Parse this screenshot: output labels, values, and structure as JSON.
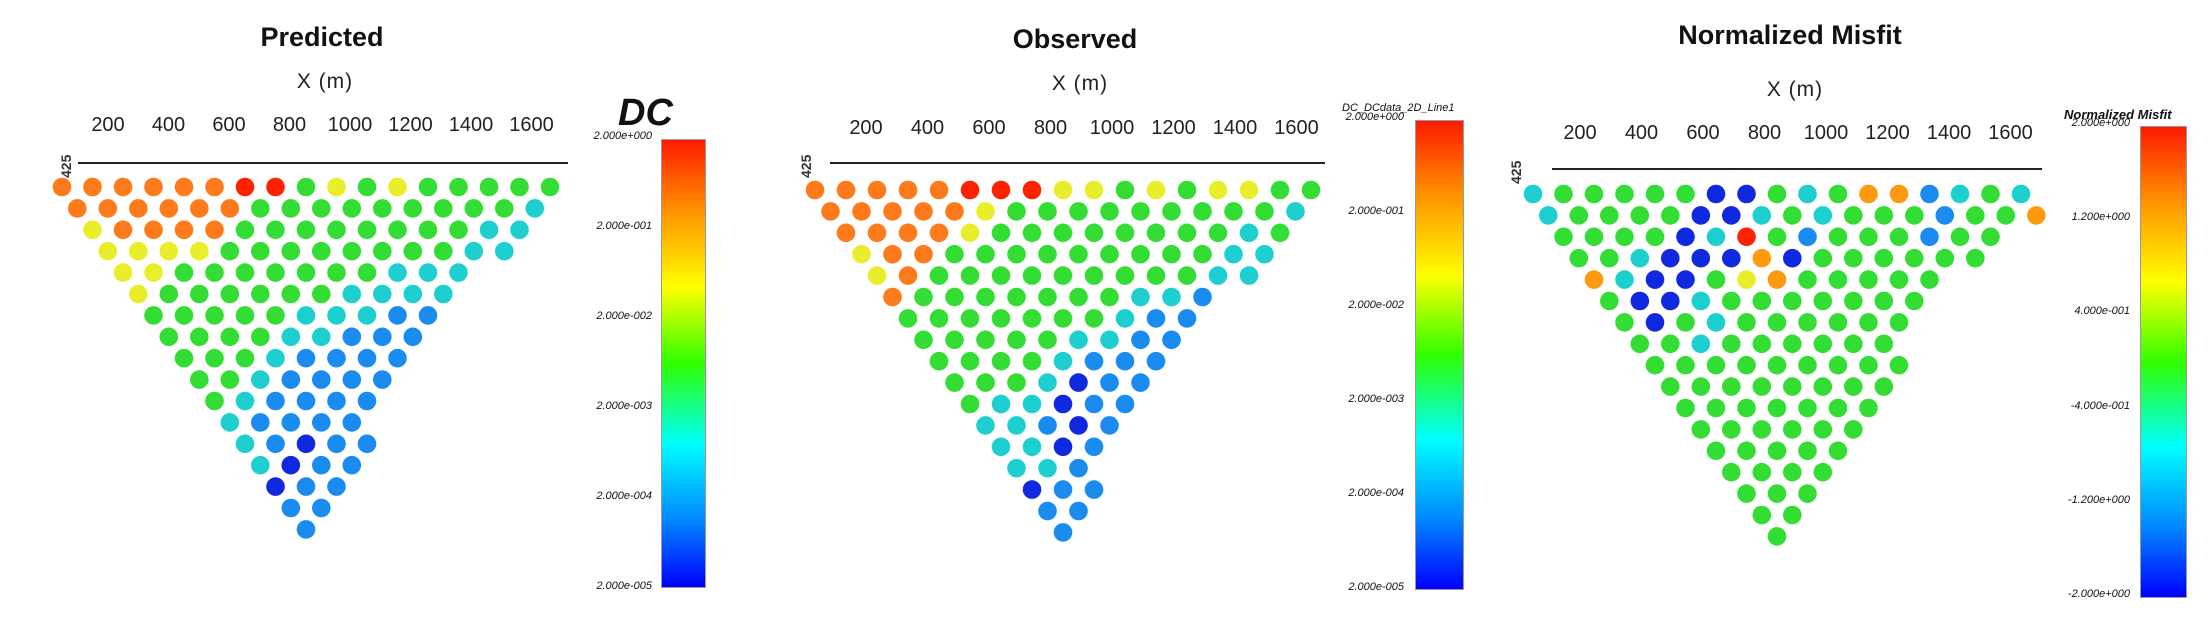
{
  "panels": [
    {
      "id": "predicted",
      "title": "Predicted",
      "xlabel": "X (m)",
      "xticks": [
        "200",
        "400",
        "600",
        "800",
        "1000",
        "1200",
        "1400",
        "1600"
      ],
      "zlabel": "425",
      "colorbar": {
        "title": "DC",
        "ticks": [
          "2.000e+000",
          "2.000e-001",
          "2.000e-002",
          "2.000e-003",
          "2.000e-004",
          "2.000e-005"
        ]
      }
    },
    {
      "id": "observed",
      "title": "Observed",
      "xlabel": "X (m)",
      "xticks": [
        "200",
        "400",
        "600",
        "800",
        "1000",
        "1200",
        "1400",
        "1600"
      ],
      "zlabel": "425",
      "colorbar": {
        "title": "DC_DCdata_2D_Line1",
        "ticks": [
          "2.000e+000",
          "2.000e-001",
          "2.000e-002",
          "2.000e-003",
          "2.000e-004",
          "2.000e-005"
        ]
      }
    },
    {
      "id": "misfit",
      "title": "Normalized Misfit",
      "xlabel": "X (m)",
      "xticks": [
        "200",
        "400",
        "600",
        "800",
        "1000",
        "1200",
        "1400",
        "1600"
      ],
      "zlabel": "425",
      "colorbar": {
        "title": "Normalized Misfit",
        "ticks": [
          "2.000e+000",
          "1.200e+000",
          "4.000e-001",
          "-4.000e-001",
          "-1.200e+000",
          "-2.000e+000"
        ]
      }
    }
  ],
  "chart_data": [
    {
      "type": "scatter",
      "title": "Predicted",
      "xlabel": "X (m)",
      "xlim": [
        60,
        1700
      ],
      "xticks": [
        200,
        400,
        600,
        800,
        1000,
        1200,
        1400,
        1600
      ],
      "colorscale": "log",
      "clim": [
        2e-05,
        2.0
      ],
      "color_ticks": [
        "2.000e+000",
        "2.000e-001",
        "2.000e-002",
        "2.000e-003",
        "2.000e-004",
        "2.000e-005"
      ],
      "rows": [
        "OOOOOORRgygyggggg",
        "OOOOOOgggggggggc",
        "yOOOOggggggggcc",
        "yyyyggggggggcc",
        "yygggggggccc",
        "yggggggcccc",
        "gggggcccbb",
        "ggggccbbb",
        "gggcbbbb",
        "ggcbbbb",
        "gcbbbb",
        "cbbbb",
        "cbdbb",
        "cdbb",
        "dbb",
        "bb",
        "b"
      ],
      "color_codes": {
        "R": "#ff2200",
        "O": "#ff7a1a",
        "y": "#e8ee2a",
        "g": "#33dd33",
        "c": "#1ecfcf",
        "b": "#1a8cf0",
        "d": "#1028e0"
      }
    },
    {
      "type": "scatter",
      "title": "Observed",
      "xlabel": "X (m)",
      "xlim": [
        60,
        1700
      ],
      "xticks": [
        200,
        400,
        600,
        800,
        1000,
        1200,
        1400,
        1600
      ],
      "colorscale": "log",
      "clim": [
        2e-05,
        2.0
      ],
      "color_ticks": [
        "2.000e+000",
        "2.000e-001",
        "2.000e-002",
        "2.000e-003",
        "2.000e-004",
        "2.000e-005"
      ],
      "rows": [
        "OOOOORRRyygygyygg",
        "OOOOOygggggggggc",
        "OOOOyggggggggcg",
        "yOOgggggggggcc",
        "yOgggggggggcc",
        "Ogggggggccb",
        "gggggggcbb",
        "gggggccbb",
        "ggggcbbb",
        "gggcdbb",
        "gccdbb",
        "ccbdb",
        "ccdb",
        "ccb",
        "dbb",
        "bb",
        "b"
      ],
      "color_codes": {
        "R": "#ff2200",
        "O": "#ff7a1a",
        "y": "#e8ee2a",
        "g": "#33dd33",
        "c": "#1ecfcf",
        "b": "#1a8cf0",
        "d": "#1028e0"
      }
    },
    {
      "type": "scatter",
      "title": "Normalized Misfit",
      "xlabel": "X (m)",
      "xlim": [
        60,
        1700
      ],
      "xticks": [
        200,
        400,
        600,
        800,
        1000,
        1200,
        1400,
        1600
      ],
      "colorscale": "linear",
      "clim": [
        -2.0,
        2.0
      ],
      "color_ticks": [
        "2.000e+000",
        "1.200e+000",
        "4.000e-001",
        "-4.000e-001",
        "-1.200e+000",
        "-2.000e+000"
      ],
      "rows": [
        "cgggggddgcgOObcgc",
        "cggggddcgcgggbggO",
        "ggggdcRgbgggbgg",
        "ggcdddOdgggggg",
        "OcddgyOggggg",
        "gddcggggggg",
        "gdgcgggggg",
        "ggcgggggg",
        "ggggggggg",
        "gggggggg",
        "ggggggg",
        "gggggg",
        "ggggg",
        "gggg",
        "ggg",
        "gg",
        "g"
      ],
      "color_codes": {
        "R": "#ff2200",
        "O": "#ff9a10",
        "y": "#e8ee2a",
        "g": "#33dd33",
        "c": "#1ecfcf",
        "b": "#1a8cf0",
        "d": "#1028e0"
      }
    }
  ]
}
